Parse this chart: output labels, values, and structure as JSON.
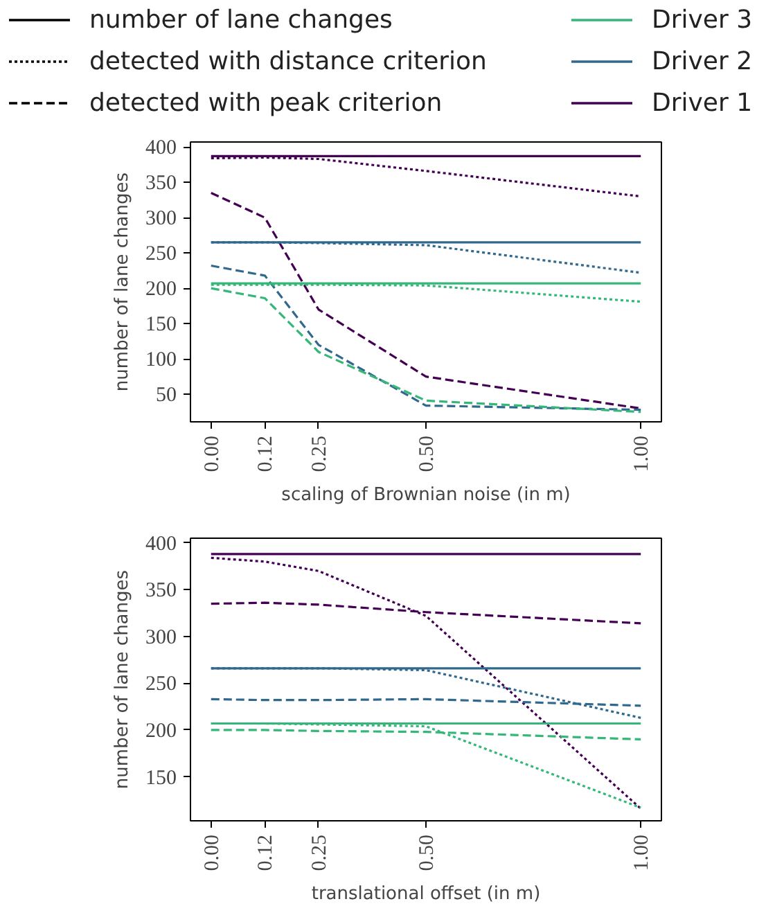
{
  "chart_data": [
    {
      "type": "line",
      "xlabel": "scaling of Brownian noise (in m)",
      "ylabel": "number of lane changes",
      "legend": "top",
      "grid": false,
      "x": [
        0,
        0.125,
        0.25,
        0.5,
        1.0
      ],
      "xlim": [
        -0.048,
        1.048
      ],
      "xticks": [
        {
          "value": 0,
          "label": "0.00"
        },
        {
          "value": 0.125,
          "label": "0.12"
        },
        {
          "value": 0.25,
          "label": "0.25"
        },
        {
          "value": 0.5,
          "label": "0.50"
        },
        {
          "value": 1.0,
          "label": "1.00"
        }
      ],
      "ylim": [
        11,
        407
      ],
      "yticks": [
        50,
        100,
        150,
        200,
        250,
        300,
        350,
        400
      ],
      "series": [
        {
          "name": "number of lane changes",
          "color": "#000000",
          "line_style": "solid",
          "values": [
            null,
            null,
            null,
            null,
            null
          ]
        },
        {
          "name": "detected with distance criterion",
          "color": "#000000",
          "line_style": "dotted",
          "values": [
            null,
            null,
            null,
            null,
            null
          ]
        },
        {
          "name": "detected with peak criterion",
          "color": "#000000",
          "line_style": "dashed",
          "values": [
            null,
            null,
            null,
            null,
            null
          ]
        },
        {
          "name": "Driver 3",
          "color": "#35b779",
          "line_style": "solid",
          "values": [
            null,
            null,
            null,
            null,
            null
          ]
        },
        {
          "name": "Driver 2",
          "color": "#31688e",
          "line_style": "solid",
          "values": [
            null,
            null,
            null,
            null,
            null
          ]
        },
        {
          "name": "Driver 1",
          "color": "#440154",
          "line_style": "solid",
          "values": [
            null,
            null,
            null,
            null,
            null
          ]
        },
        {
          "color": "#440154",
          "line_style": "solid",
          "values": [
            387,
            387,
            387,
            387,
            387
          ]
        },
        {
          "color": "#440154",
          "line_style": "dotted",
          "values": [
            384,
            385,
            383,
            366,
            330
          ]
        },
        {
          "color": "#440154",
          "line_style": "dashed",
          "values": [
            335,
            300,
            170,
            75,
            30
          ]
        },
        {
          "color": "#31688e",
          "line_style": "solid",
          "values": [
            265,
            265,
            265,
            265,
            265
          ]
        },
        {
          "color": "#31688e",
          "line_style": "dotted",
          "values": [
            265,
            265,
            264,
            261,
            222
          ]
        },
        {
          "color": "#31688e",
          "line_style": "dashed",
          "values": [
            232,
            218,
            120,
            34,
            28
          ]
        },
        {
          "color": "#35b779",
          "line_style": "solid",
          "values": [
            207,
            207,
            207,
            207,
            207
          ]
        },
        {
          "color": "#35b779",
          "line_style": "dotted",
          "values": [
            205,
            205,
            205,
            204,
            181
          ]
        },
        {
          "color": "#35b779",
          "line_style": "dashed",
          "values": [
            200,
            186,
            110,
            41,
            25
          ]
        }
      ]
    },
    {
      "type": "line",
      "xlabel": "translational offset (in m)",
      "ylabel": "number of lane changes",
      "grid": false,
      "x": [
        0,
        0.125,
        0.25,
        0.5,
        1.0
      ],
      "xlim": [
        -0.048,
        1.048
      ],
      "xticks": [
        {
          "value": 0,
          "label": "0.00"
        },
        {
          "value": 0.125,
          "label": "0.12"
        },
        {
          "value": 0.25,
          "label": "0.25"
        },
        {
          "value": 0.5,
          "label": "0.50"
        },
        {
          "value": 1.0,
          "label": "1.00"
        }
      ],
      "ylim": [
        103,
        405
      ],
      "yticks": [
        150,
        200,
        250,
        300,
        350,
        400
      ],
      "series": [
        {
          "color": "#440154",
          "line_style": "solid",
          "values": [
            388,
            388,
            388,
            388,
            388
          ]
        },
        {
          "color": "#440154",
          "line_style": "dotted",
          "values": [
            384,
            380,
            370,
            322,
            116
          ]
        },
        {
          "color": "#440154",
          "line_style": "dashed",
          "values": [
            335,
            336,
            334,
            326,
            314
          ]
        },
        {
          "color": "#31688e",
          "line_style": "solid",
          "values": [
            266,
            266,
            266,
            266,
            266
          ]
        },
        {
          "color": "#31688e",
          "line_style": "dotted",
          "values": [
            266,
            266,
            266,
            264,
            213
          ]
        },
        {
          "color": "#31688e",
          "line_style": "dashed",
          "values": [
            233,
            232,
            232,
            233,
            226
          ]
        },
        {
          "color": "#35b779",
          "line_style": "solid",
          "values": [
            207,
            207,
            207,
            207,
            207
          ]
        },
        {
          "color": "#35b779",
          "line_style": "dotted",
          "values": [
            207,
            207,
            206,
            204,
            117
          ]
        },
        {
          "color": "#35b779",
          "line_style": "dashed",
          "values": [
            200,
            200,
            199,
            198,
            190
          ]
        }
      ]
    }
  ]
}
